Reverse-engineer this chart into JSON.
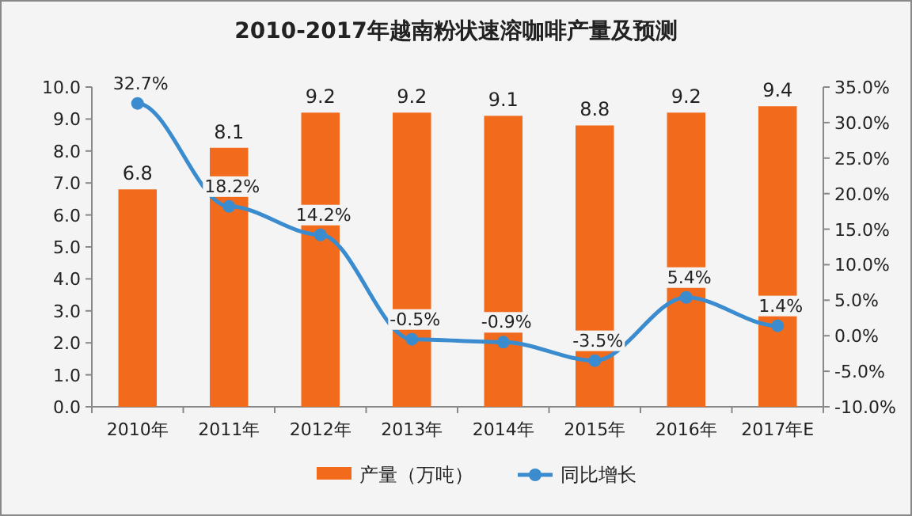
{
  "chart_data": {
    "type": "bar",
    "title": "2010-2017年越南粉状速溶咖啡产量及预测",
    "categories": [
      "2010年",
      "2011年",
      "2012年",
      "2013年",
      "2014年",
      "2015年",
      "2016年",
      "2017年E"
    ],
    "series": [
      {
        "name": "产量（万吨）",
        "color": "#f26b1d",
        "values": [
          6.8,
          8.1,
          9.2,
          9.2,
          9.1,
          8.8,
          9.2,
          9.4
        ],
        "value_labels": [
          "6.8",
          "8.1",
          "9.2",
          "9.2",
          "9.1",
          "8.8",
          "9.2",
          "9.4"
        ]
      },
      {
        "name": "同比增长",
        "type": "line",
        "axis": "y2",
        "color": "#3a8ccf",
        "marker": "circle",
        "values": [
          32.7,
          18.2,
          14.2,
          -0.5,
          -0.9,
          -3.5,
          5.4,
          1.4
        ],
        "value_labels": [
          "32.7%",
          "18.2%",
          "14.2%",
          "-0.5%",
          "-0.9%",
          "-3.5%",
          "5.4%",
          "1.4%"
        ]
      }
    ],
    "ylim": [
      0,
      10
    ],
    "yticks": [
      {
        "value": 0,
        "label": "0.0"
      },
      {
        "value": 1,
        "label": "1.0"
      },
      {
        "value": 2,
        "label": "2.0"
      },
      {
        "value": 3,
        "label": "3.0"
      },
      {
        "value": 4,
        "label": "4.0"
      },
      {
        "value": 5,
        "label": "5.0"
      },
      {
        "value": 6,
        "label": "6.0"
      },
      {
        "value": 7,
        "label": "7.0"
      },
      {
        "value": 8,
        "label": "8.0"
      },
      {
        "value": 9,
        "label": "9.0"
      },
      {
        "value": 10,
        "label": "10.0"
      }
    ],
    "y2lim": [
      -10,
      35
    ],
    "y2ticks": [
      {
        "value": -10,
        "label": "-10.0%"
      },
      {
        "value": -5,
        "label": "-5.0%"
      },
      {
        "value": 0,
        "label": "0.0%"
      },
      {
        "value": 5,
        "label": "5.0%"
      },
      {
        "value": 10,
        "label": "10.0%"
      },
      {
        "value": 15,
        "label": "15.0%"
      },
      {
        "value": 20,
        "label": "20.0%"
      },
      {
        "value": 25,
        "label": "25.0%"
      },
      {
        "value": 30,
        "label": "30.0%"
      },
      {
        "value": 35,
        "label": "35.0%"
      }
    ],
    "legend": "bottom"
  }
}
